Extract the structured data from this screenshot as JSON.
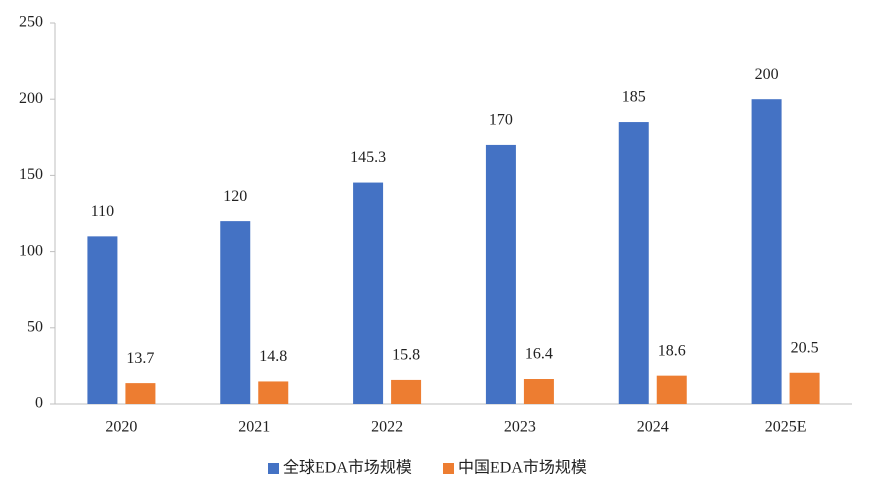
{
  "chart_data": {
    "type": "bar",
    "categories": [
      "2020",
      "2021",
      "2022",
      "2023",
      "2024",
      "2025E"
    ],
    "series": [
      {
        "name": "全球EDA市场规模",
        "color": "#4472c4",
        "values": [
          110,
          120,
          145.3,
          170,
          185,
          200
        ]
      },
      {
        "name": "中国EDA市场规模",
        "color": "#ed7d31",
        "values": [
          13.7,
          14.8,
          15.8,
          16.4,
          18.6,
          20.5
        ]
      }
    ],
    "ylim": [
      0,
      250
    ],
    "yticks": [
      0,
      50,
      100,
      150,
      200,
      250
    ],
    "grid": false,
    "legend": "bottom"
  }
}
